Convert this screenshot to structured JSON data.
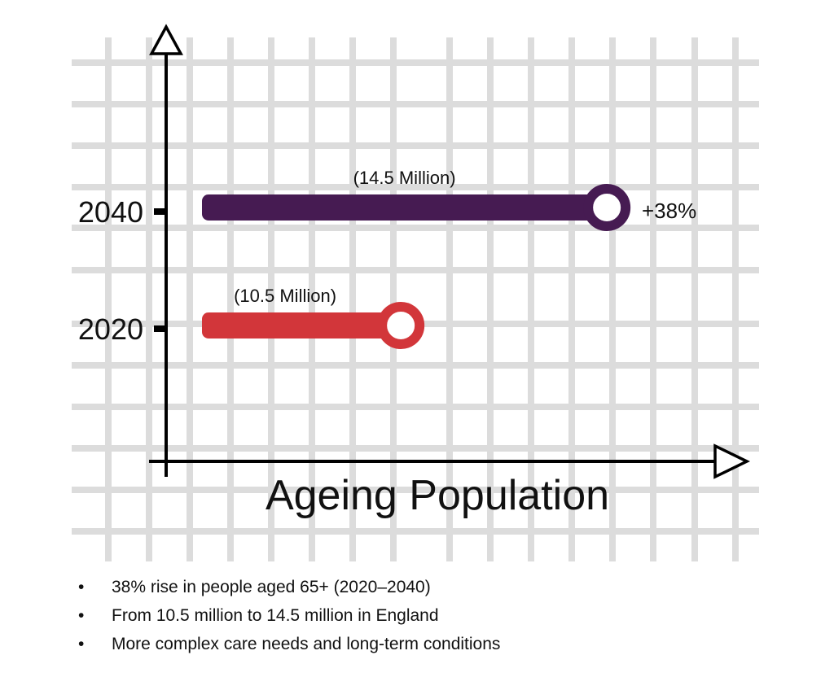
{
  "chart_data": {
    "type": "bar",
    "title": "Ageing Population",
    "xlabel": "Ageing Population",
    "ylabel": "",
    "categories": [
      "2040",
      "2020"
    ],
    "values": [
      14.5,
      10.5
    ],
    "value_unit": "million",
    "data_labels": [
      "(14.5 Million)",
      "(10.5 Million)"
    ],
    "annotation": "+38%",
    "colors": [
      "#461b52",
      "#d2363a"
    ],
    "grid": true,
    "legend": "none"
  },
  "bullets": [
    "38% rise in people aged 65+ (2020–2040)",
    "From 10.5 million to 14.5 million in England",
    "More complex care needs and long-term conditions"
  ],
  "bullet_char": "•"
}
